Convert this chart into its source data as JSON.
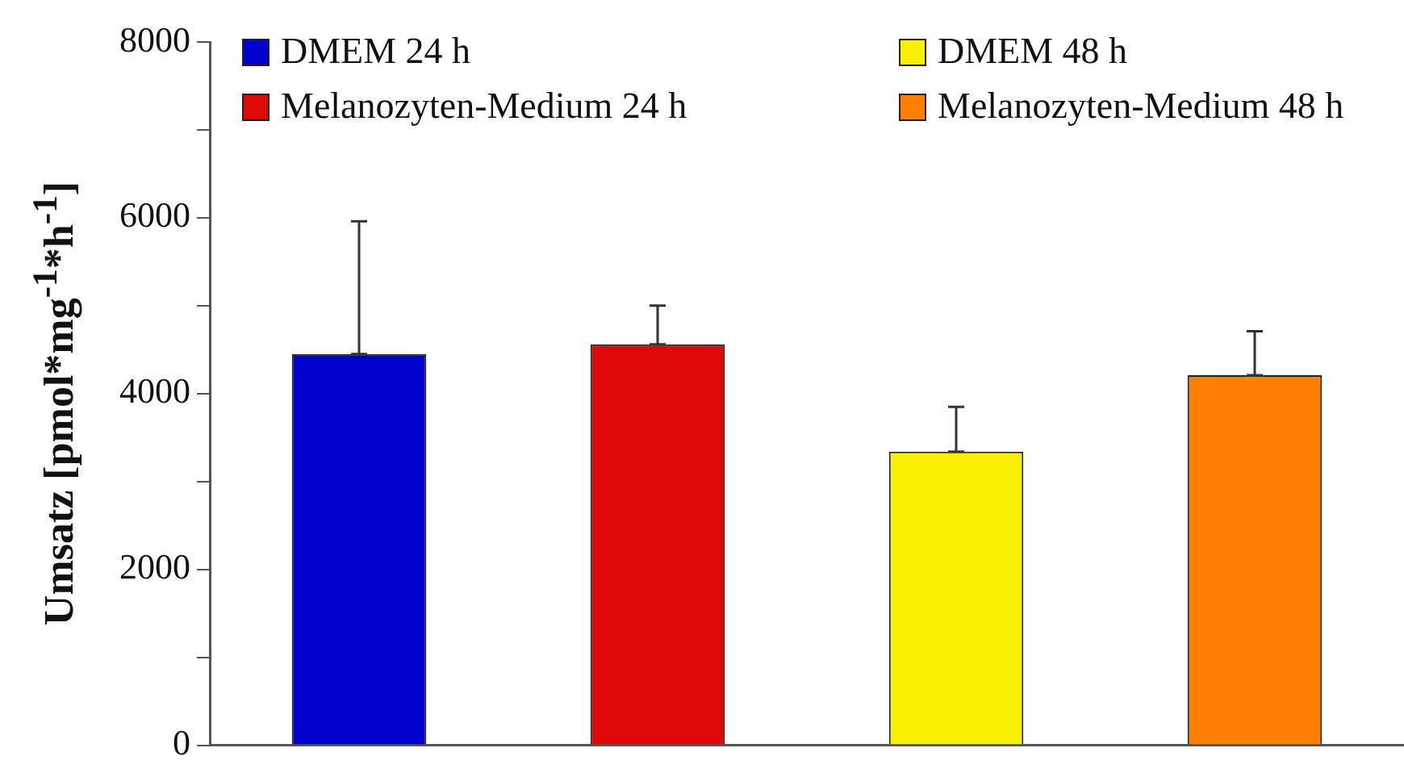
{
  "chart_data": {
    "type": "bar",
    "ylabel": "Umsatz [pmol*mg$^{-1}$*h$^{-1}$]",
    "categories": [
      null,
      null,
      null,
      null
    ],
    "series": [
      {
        "name": "DMEM 24 h",
        "color": "#0000cc",
        "values": [
          4450,
          null,
          null,
          null
        ],
        "errors": [
          [
            4450,
            5960
          ],
          null,
          null,
          null
        ]
      },
      {
        "name": "Melanozyten-Medium 24 h",
        "color": "#dd0808",
        "values": [
          null,
          4560,
          null,
          null
        ],
        "errors": [
          null,
          [
            4560,
            5000
          ],
          null,
          null
        ]
      },
      {
        "name": "DMEM 48 h",
        "color": "#f9f000",
        "values": [
          null,
          null,
          3340,
          null
        ],
        "errors": [
          null,
          null,
          [
            3340,
            3850
          ],
          null
        ]
      },
      {
        "name": "Melanozyten-Medium 48 h",
        "color": "#ff7f00",
        "values": [
          null,
          null,
          null,
          4210
        ],
        "errors": [
          null,
          null,
          null,
          [
            4210,
            4710
          ]
        ]
      }
    ],
    "ylim": [
      0,
      8000
    ],
    "yticks": [
      0,
      {
        "value": 1000,
        "label": null
      },
      2000,
      {
        "value": 3000,
        "label": null
      },
      4000,
      {
        "value": 5000,
        "label": null
      },
      6000,
      {
        "value": 7000,
        "label": null
      },
      8000
    ],
    "grid": false,
    "legend": "top",
    "tick_labels": "y"
  }
}
